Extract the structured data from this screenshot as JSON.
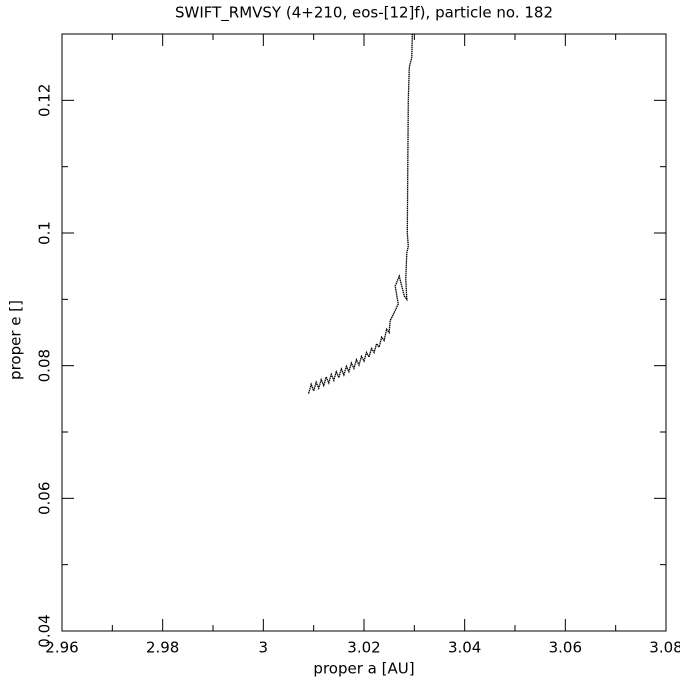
{
  "chart_data": {
    "type": "line",
    "title": "SWIFT_RMVSY (4+210, eos-[12]f), particle no. 182",
    "x_label": "proper a [AU]",
    "y_label": "proper e []",
    "color": "#000000",
    "x": [
      3.009,
      3.0095,
      3.01,
      3.0105,
      3.011,
      3.0115,
      3.012,
      3.0125,
      3.013,
      3.0135,
      3.014,
      3.0145,
      3.015,
      3.0155,
      3.016,
      3.0165,
      3.017,
      3.0175,
      3.018,
      3.0185,
      3.019,
      3.0195,
      3.02,
      3.0205,
      3.021,
      3.0215,
      3.022,
      3.0225,
      3.023,
      3.0235,
      3.024,
      3.0245,
      3.025,
      3.0252,
      3.026,
      3.0268,
      3.0262,
      3.027,
      3.028,
      3.0285,
      3.0283,
      3.0285,
      3.0288,
      3.0286,
      3.0287,
      3.0288,
      3.029,
      3.0295,
      3.0296
    ],
    "values": [
      0.0758,
      0.0772,
      0.0762,
      0.0775,
      0.0766,
      0.0779,
      0.077,
      0.0783,
      0.0774,
      0.0787,
      0.0778,
      0.0791,
      0.0782,
      0.0795,
      0.0786,
      0.0799,
      0.0791,
      0.0804,
      0.0796,
      0.0809,
      0.0801,
      0.0814,
      0.0807,
      0.082,
      0.0813,
      0.0826,
      0.082,
      0.0833,
      0.0828,
      0.0843,
      0.0838,
      0.0855,
      0.085,
      0.0868,
      0.088,
      0.0893,
      0.092,
      0.0935,
      0.0905,
      0.09,
      0.093,
      0.097,
      0.098,
      0.1,
      0.11,
      0.12,
      0.125,
      0.1265,
      0.13
    ],
    "xlim": [
      2.96,
      3.08
    ],
    "ylim": [
      0.04,
      0.13
    ],
    "xticks": [
      2.96,
      2.98,
      3,
      3.02,
      3.04,
      3.06,
      3.08
    ],
    "yticks": [
      0.04,
      0.06,
      0.08,
      0.1,
      0.12
    ],
    "xminorticks": [
      2.97,
      2.99,
      3.01,
      3.03,
      3.05,
      3.07
    ],
    "yminorticks": [
      0.05,
      0.07,
      0.09,
      0.11
    ]
  }
}
